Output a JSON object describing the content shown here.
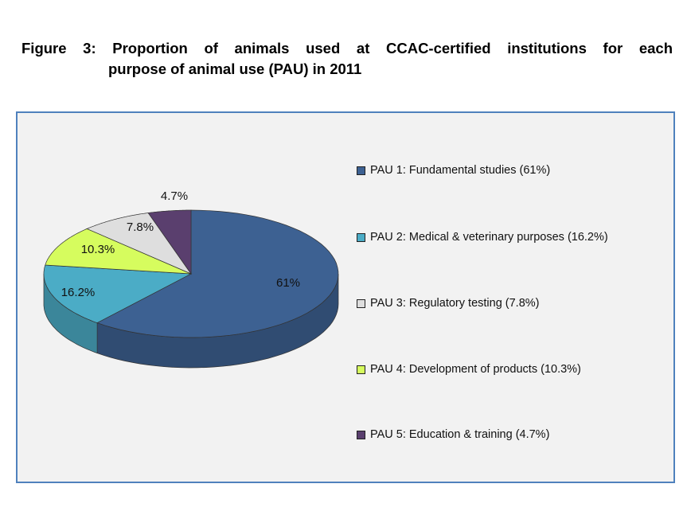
{
  "title": {
    "line1": "Figure 3: Proportion of animals used at CCAC-certified institutions for each",
    "line2": "purpose of animal use (PAU) in 2011"
  },
  "chart_data": {
    "type": "pie",
    "style": "3d",
    "title": "Figure 3: Proportion of animals used at CCAC-certified institutions for each purpose of animal use (PAU) in 2011",
    "legend_position": "right",
    "slices_in_draw_order": [
      "PAU 1",
      "PAU 2",
      "PAU 4",
      "PAU 3",
      "PAU 5"
    ],
    "series": [
      {
        "name": "PAU 1: Fundamental studies (61%)",
        "value": 61,
        "label": "61%",
        "color": "#3d6192"
      },
      {
        "name": "PAU 2: Medical & veterinary purposes (16.2%)",
        "value": 16.2,
        "label": "16.2%",
        "color": "#4bacc6"
      },
      {
        "name": "PAU 3: Regulatory testing (7.8%)",
        "value": 7.8,
        "label": "7.8%",
        "color": "#dedede"
      },
      {
        "name": "PAU 4: Development of products (10.3%)",
        "value": 10.3,
        "label": "10.3%",
        "color": "#d6fc5e"
      },
      {
        "name": "PAU 5: Education & training (4.7%)",
        "value": 4.7,
        "label": "4.7%",
        "color": "#5a3f6e"
      }
    ]
  }
}
